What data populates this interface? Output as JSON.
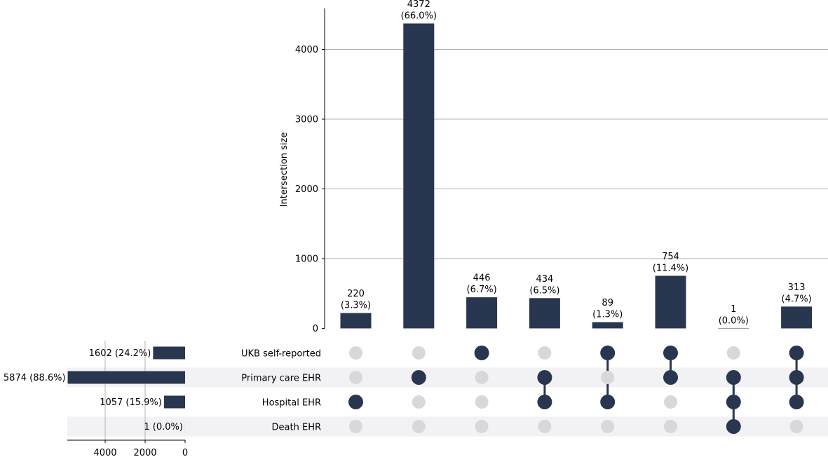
{
  "chart_data": {
    "type": "bar",
    "subtype": "upset",
    "ylabel": "Intersection size",
    "ylim": [
      0,
      4500
    ],
    "yticks": [
      "0",
      "1000",
      "2000",
      "3000",
      "4000"
    ],
    "grid": true,
    "sets": [
      {
        "name": "UKB self-reported",
        "size": 1602,
        "label": "1602 (24.2%)"
      },
      {
        "name": "Primary care EHR",
        "size": 5874,
        "label": "5874 (88.6%)"
      },
      {
        "name": "Hospital EHR",
        "size": 1057,
        "label": "1057 (15.9%)"
      },
      {
        "name": "Death EHR",
        "size": 1,
        "label": "1 (0.0%)"
      }
    ],
    "set_size_ticks": [
      "4000",
      "2000",
      "0"
    ],
    "set_size_xlim": [
      0,
      5900
    ],
    "intersections": [
      {
        "members": [
          2
        ],
        "value": 220,
        "count_label": "220",
        "pct_label": "(3.3%)"
      },
      {
        "members": [
          1
        ],
        "value": 4372,
        "count_label": "4372",
        "pct_label": "(66.0%)"
      },
      {
        "members": [
          0
        ],
        "value": 446,
        "count_label": "446",
        "pct_label": "(6.7%)"
      },
      {
        "members": [
          1,
          2
        ],
        "value": 434,
        "count_label": "434",
        "pct_label": "(6.5%)"
      },
      {
        "members": [
          0,
          2
        ],
        "value": 89,
        "count_label": "89",
        "pct_label": "(1.3%)"
      },
      {
        "members": [
          0,
          1
        ],
        "value": 754,
        "count_label": "754",
        "pct_label": "(11.4%)"
      },
      {
        "members": [
          1,
          2,
          3
        ],
        "value": 1,
        "count_label": "1",
        "pct_label": "(0.0%)"
      },
      {
        "members": [
          0,
          1,
          2
        ],
        "value": 313,
        "count_label": "313",
        "pct_label": "(4.7%)"
      }
    ],
    "colors": {
      "bar": "#283650",
      "dot_active": "#283650",
      "dot_inactive": "#d6d8dc",
      "stripe": "#f2f2f5",
      "grid": "#b0b0b0"
    }
  }
}
